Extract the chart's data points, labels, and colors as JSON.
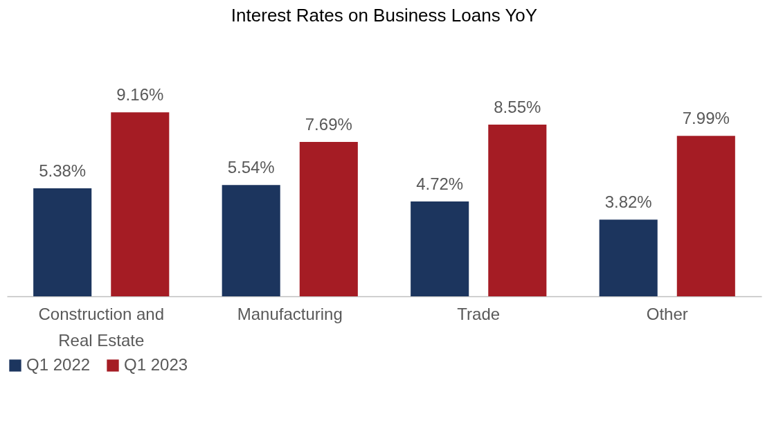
{
  "chart_data": {
    "type": "bar",
    "title": "Interest Rates on Business Loans YoY",
    "categories": [
      "Construction and Real Estate",
      "Manufacturing",
      "Trade",
      "Other"
    ],
    "series": [
      {
        "name": "Q1 2022",
        "color": "#1c355e",
        "values": [
          5.38,
          5.54,
          4.72,
          3.82
        ],
        "value_labels": [
          "5.38%",
          "5.54%",
          "4.72%",
          "3.82%"
        ]
      },
      {
        "name": "Q1 2023",
        "color": "#a51c24",
        "values": [
          9.16,
          7.69,
          8.55,
          7.99
        ],
        "value_labels": [
          "9.16%",
          "7.69%",
          "8.55%",
          "7.99%"
        ]
      }
    ],
    "grid": false,
    "legend": "bottom"
  }
}
